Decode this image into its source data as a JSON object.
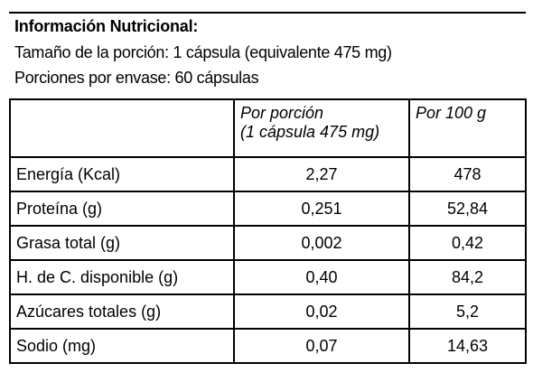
{
  "header": {
    "title": "Información Nutricional:",
    "lines": [
      "Tamaño de la porción: 1 cápsula (equivalente 475 mg)",
      "Porciones por envase: 60 cápsulas"
    ]
  },
  "table": {
    "columns": [
      [
        "Por porción",
        "(1 cápsula 475 mg)"
      ],
      [
        "Por 100 g"
      ]
    ],
    "rows": [
      [
        "Energía (Kcal)",
        "2,27",
        "478"
      ],
      [
        "Proteína (g)",
        "0,251",
        "52,84"
      ],
      [
        "Grasa total (g)",
        "0,002",
        "0,42"
      ],
      [
        "H. de C. disponible (g)",
        "0,40",
        "84,2"
      ],
      [
        "Azúcares totales (g)",
        "0,02",
        "5,2"
      ],
      [
        "Sodio (mg)",
        "0,07",
        "14,63"
      ]
    ]
  }
}
